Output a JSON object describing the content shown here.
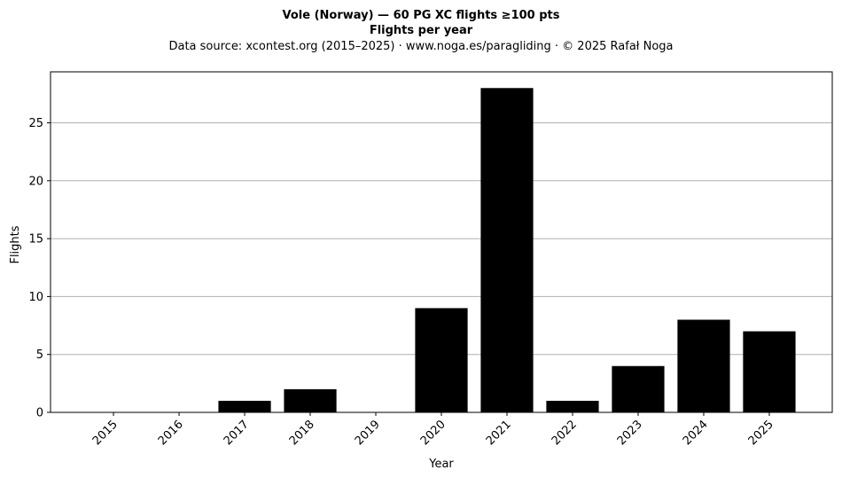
{
  "chart_data": {
    "type": "bar",
    "title": "Vole (Norway)  —  60 PG XC flights ≥100 pts",
    "subtitle": "Flights per year",
    "source": "Data source: xcontest.org (2015–2025)  ·  www.noga.es/paragliding  ·  © 2025 Rafał Noga",
    "xlabel": "Year",
    "ylabel": "Flights",
    "categories": [
      "2015",
      "2016",
      "2017",
      "2018",
      "2019",
      "2020",
      "2021",
      "2022",
      "2023",
      "2024",
      "2025"
    ],
    "values": [
      0,
      0,
      1,
      2,
      0,
      9,
      28,
      1,
      4,
      8,
      7
    ],
    "ylim": [
      0,
      29.4
    ],
    "yticks": [
      0,
      5,
      10,
      15,
      20,
      25
    ],
    "grid": "y",
    "bar_color": "#000000",
    "grid_color": "#b0b0b0"
  }
}
